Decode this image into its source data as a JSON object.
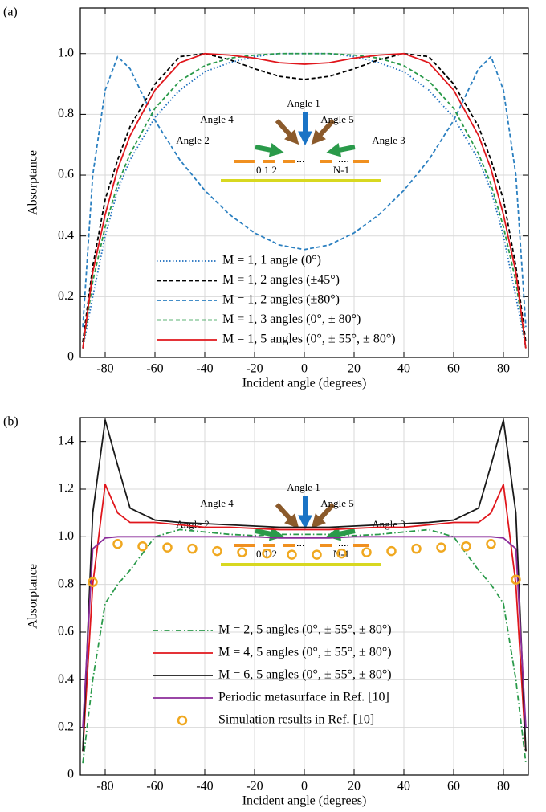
{
  "chart_data": [
    {
      "type": "line",
      "panel_label": "(a)",
      "xlabel": "Incident angle (degrees)",
      "ylabel": "Absorptance",
      "x": [
        -89,
        -85,
        -80,
        -75,
        -70,
        -60,
        -50,
        -40,
        -30,
        -20,
        -10,
        0,
        10,
        20,
        30,
        40,
        50,
        60,
        70,
        75,
        80,
        85,
        89
      ],
      "xlim": [
        -90,
        90
      ],
      "xticks": [
        -80,
        -60,
        -40,
        -20,
        0,
        20,
        40,
        60,
        80
      ],
      "ylim": [
        0,
        1.15
      ],
      "yticks": [
        0,
        0.2,
        0.4,
        0.6,
        0.8,
        {
          "value": 1,
          "label": "1.0"
        }
      ],
      "grid": true,
      "annotations": [
        "Angle 1",
        "Angle 4",
        "Angle 5",
        "Angle 2",
        "Angle 3",
        "0  1  2",
        "N-1"
      ],
      "series": [
        {
          "name": "M = 1, 1 angle (0°)",
          "color": "#1f6fbf",
          "dash": "dotted",
          "values": [
            0.03,
            0.2,
            0.4,
            0.55,
            0.65,
            0.79,
            0.88,
            0.94,
            0.97,
            0.99,
            1.0,
            1.0,
            1.0,
            0.99,
            0.97,
            0.94,
            0.88,
            0.79,
            0.65,
            0.55,
            0.4,
            0.2,
            0.03
          ]
        },
        {
          "name": "M = 1, 2 angles (±45°)",
          "color": "#000000",
          "dash": "dashed",
          "values": [
            0.05,
            0.3,
            0.52,
            0.65,
            0.76,
            0.9,
            0.99,
            1.0,
            0.98,
            0.95,
            0.925,
            0.915,
            0.925,
            0.95,
            0.98,
            1.0,
            0.99,
            0.9,
            0.76,
            0.65,
            0.52,
            0.3,
            0.05
          ]
        },
        {
          "name": "M = 1, 2 angles (±80°)",
          "color": "#2a7fc0",
          "dash": "dashed",
          "values": [
            0.1,
            0.6,
            0.88,
            0.99,
            0.95,
            0.78,
            0.65,
            0.55,
            0.47,
            0.41,
            0.37,
            0.355,
            0.37,
            0.41,
            0.47,
            0.55,
            0.65,
            0.78,
            0.95,
            0.99,
            0.88,
            0.6,
            0.1
          ]
        },
        {
          "name": "M = 1, 3 angles (0°, ± 80°)",
          "color": "#2a9a4a",
          "dash": "dashed",
          "values": [
            0.03,
            0.25,
            0.43,
            0.57,
            0.67,
            0.82,
            0.91,
            0.96,
            0.985,
            0.995,
            1.0,
            1.0,
            1.0,
            0.995,
            0.985,
            0.96,
            0.91,
            0.82,
            0.67,
            0.57,
            0.43,
            0.25,
            0.03
          ]
        },
        {
          "name": "M = 1, 5 angles (0°, ± 55°, ± 80°)",
          "color": "#e0161c",
          "dash": "solid",
          "values": [
            0.03,
            0.28,
            0.47,
            0.62,
            0.73,
            0.88,
            0.97,
            1.0,
            0.995,
            0.985,
            0.97,
            0.965,
            0.97,
            0.985,
            0.995,
            1.0,
            0.97,
            0.88,
            0.73,
            0.62,
            0.47,
            0.28,
            0.03
          ]
        }
      ]
    },
    {
      "type": "line",
      "panel_label": "(b)",
      "xlabel": "Incident angle (degrees)",
      "ylabel": "Absorptance",
      "x": [
        -89,
        -85,
        -80,
        -75,
        -70,
        -60,
        -50,
        -40,
        -30,
        -20,
        -10,
        0,
        10,
        20,
        30,
        40,
        50,
        60,
        70,
        75,
        80,
        85,
        89
      ],
      "xlim": [
        -90,
        90
      ],
      "xticks": [
        -80,
        -60,
        -40,
        -20,
        0,
        20,
        40,
        60,
        80
      ],
      "ylim": [
        0,
        1.5
      ],
      "yticks": [
        0,
        0.2,
        0.4,
        0.6,
        0.8,
        {
          "value": 1,
          "label": "1.0"
        },
        1.2,
        1.4
      ],
      "grid": true,
      "annotations": [
        "Angle 1",
        "Angle 4",
        "Angle 5",
        "Angle 2",
        "Angle 3",
        "0  1  2",
        "N-1"
      ],
      "series": [
        {
          "name": "M = 2, 5 angles (0°, ± 55°, ± 80°)",
          "color": "#2a9a4a",
          "dash": "dashdot",
          "values": [
            0.05,
            0.4,
            0.72,
            0.8,
            0.86,
            1.0,
            1.03,
            1.02,
            1.01,
            1.005,
            1.01,
            1.01,
            1.01,
            1.005,
            1.01,
            1.02,
            1.03,
            1.0,
            0.86,
            0.8,
            0.72,
            0.4,
            0.05
          ]
        },
        {
          "name": "M = 4, 5 angles (0°, ± 55°, ± 80°)",
          "color": "#e0161c",
          "dash": "solid",
          "values": [
            0.1,
            0.8,
            1.22,
            1.1,
            1.06,
            1.06,
            1.05,
            1.04,
            1.04,
            1.035,
            1.03,
            1.03,
            1.03,
            1.035,
            1.04,
            1.04,
            1.05,
            1.06,
            1.06,
            1.1,
            1.22,
            0.8,
            0.1
          ]
        },
        {
          "name": "M = 6, 5 angles (0°, ± 55°, ± 80°)",
          "color": "#1a1a1a",
          "dash": "solid",
          "values": [
            0.1,
            1.1,
            1.49,
            1.3,
            1.12,
            1.07,
            1.06,
            1.055,
            1.05,
            1.045,
            1.04,
            1.04,
            1.04,
            1.045,
            1.05,
            1.055,
            1.06,
            1.07,
            1.12,
            1.3,
            1.49,
            1.1,
            0.1
          ]
        },
        {
          "name": "Periodic metasurface in Ref. [10]",
          "color": "#8b2c9a",
          "dash": "solid",
          "values": [
            0.2,
            0.95,
            0.995,
            1.0,
            1.0,
            1.0,
            1.0,
            1.0,
            1.0,
            1.0,
            0.995,
            0.995,
            0.995,
            1.0,
            1.0,
            1.0,
            1.0,
            1.0,
            1.0,
            1.0,
            0.995,
            0.95,
            0.2
          ]
        },
        {
          "name": "Simulation results in Ref. [10]",
          "color": "#f0a820",
          "marker": "circle",
          "x": [
            -85,
            -75,
            -65,
            -55,
            -45,
            -35,
            -25,
            -15,
            -5,
            5,
            15,
            25,
            35,
            45,
            55,
            65,
            75,
            85
          ],
          "values": [
            0.81,
            0.97,
            0.96,
            0.955,
            0.95,
            0.94,
            0.935,
            0.93,
            0.925,
            0.925,
            0.93,
            0.935,
            0.94,
            0.95,
            0.955,
            0.96,
            0.97,
            0.82
          ]
        }
      ]
    }
  ]
}
